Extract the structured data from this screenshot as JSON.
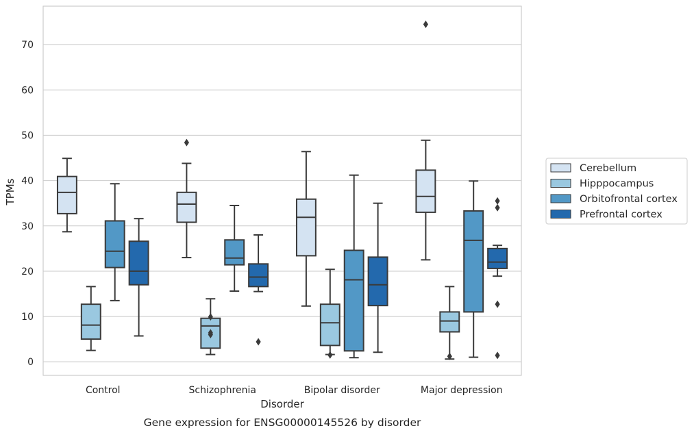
{
  "caption": "Gene expression for ENSG00000145526 by disorder",
  "chart_data": {
    "type": "box",
    "xlabel": "Disorder",
    "ylabel": "TPMs",
    "ylim": [
      -3,
      78.5
    ],
    "yticks": [
      0,
      10,
      20,
      30,
      40,
      50,
      60,
      70
    ],
    "grid": "horizontal",
    "legend_position": "right",
    "categories": [
      "Control",
      "Schizophrenia",
      "Bipolar disorder",
      "Major depression"
    ],
    "series": [
      {
        "name": "Cerebellum",
        "color": "#d4e3f2",
        "boxes": [
          {
            "whisker_low": 28.7,
            "q1": 32.7,
            "median": 37.4,
            "q3": 40.9,
            "whisker_high": 44.9,
            "outliers": []
          },
          {
            "whisker_low": 23.0,
            "q1": 30.8,
            "median": 34.8,
            "q3": 37.4,
            "whisker_high": 43.8,
            "outliers": [
              48.4
            ]
          },
          {
            "whisker_low": 12.3,
            "q1": 23.4,
            "median": 31.9,
            "q3": 35.9,
            "whisker_high": 46.4,
            "outliers": []
          },
          {
            "whisker_low": 22.5,
            "q1": 33.0,
            "median": 36.5,
            "q3": 42.3,
            "whisker_high": 48.9,
            "outliers": [
              74.5
            ]
          }
        ]
      },
      {
        "name": "Hipppocampus",
        "color": "#9ac8e0",
        "boxes": [
          {
            "whisker_low": 2.5,
            "q1": 5.0,
            "median": 8.1,
            "q3": 12.7,
            "whisker_high": 16.6,
            "outliers": []
          },
          {
            "whisker_low": 1.6,
            "q1": 3.0,
            "median": 7.9,
            "q3": 9.6,
            "whisker_high": 13.9,
            "outliers": [
              9.9,
              6.0,
              6.4
            ]
          },
          {
            "whisker_low": 1.6,
            "q1": 3.6,
            "median": 8.6,
            "q3": 12.7,
            "whisker_high": 20.4,
            "outliers": [
              1.5
            ]
          },
          {
            "whisker_low": 0.6,
            "q1": 6.6,
            "median": 9.0,
            "q3": 11.0,
            "whisker_high": 16.6,
            "outliers": [
              1.2
            ]
          }
        ]
      },
      {
        "name": "Orbitofrontal cortex",
        "color": "#5298c6",
        "boxes": [
          {
            "whisker_low": 13.5,
            "q1": 20.8,
            "median": 24.4,
            "q3": 31.1,
            "whisker_high": 39.3,
            "outliers": []
          },
          {
            "whisker_low": 15.6,
            "q1": 21.4,
            "median": 22.9,
            "q3": 26.9,
            "whisker_high": 34.5,
            "outliers": []
          },
          {
            "whisker_low": 0.9,
            "q1": 2.4,
            "median": 18.1,
            "q3": 24.6,
            "whisker_high": 41.2,
            "outliers": []
          },
          {
            "whisker_low": 1.0,
            "q1": 11.0,
            "median": 26.8,
            "q3": 33.3,
            "whisker_high": 39.9,
            "outliers": []
          }
        ]
      },
      {
        "name": "Prefrontal cortex",
        "color": "#2369ad",
        "boxes": [
          {
            "whisker_low": 5.7,
            "q1": 17.0,
            "median": 20.0,
            "q3": 26.6,
            "whisker_high": 31.6,
            "outliers": []
          },
          {
            "whisker_low": 15.5,
            "q1": 16.6,
            "median": 18.7,
            "q3": 21.6,
            "whisker_high": 28.0,
            "outliers": [
              4.4
            ]
          },
          {
            "whisker_low": 2.1,
            "q1": 12.4,
            "median": 17.0,
            "q3": 23.1,
            "whisker_high": 35.0,
            "outliers": []
          },
          {
            "whisker_low": 18.9,
            "q1": 20.6,
            "median": 22.0,
            "q3": 25.0,
            "whisker_high": 25.7,
            "outliers": [
              35.5,
              34.0,
              12.7,
              1.4
            ]
          }
        ]
      }
    ]
  }
}
